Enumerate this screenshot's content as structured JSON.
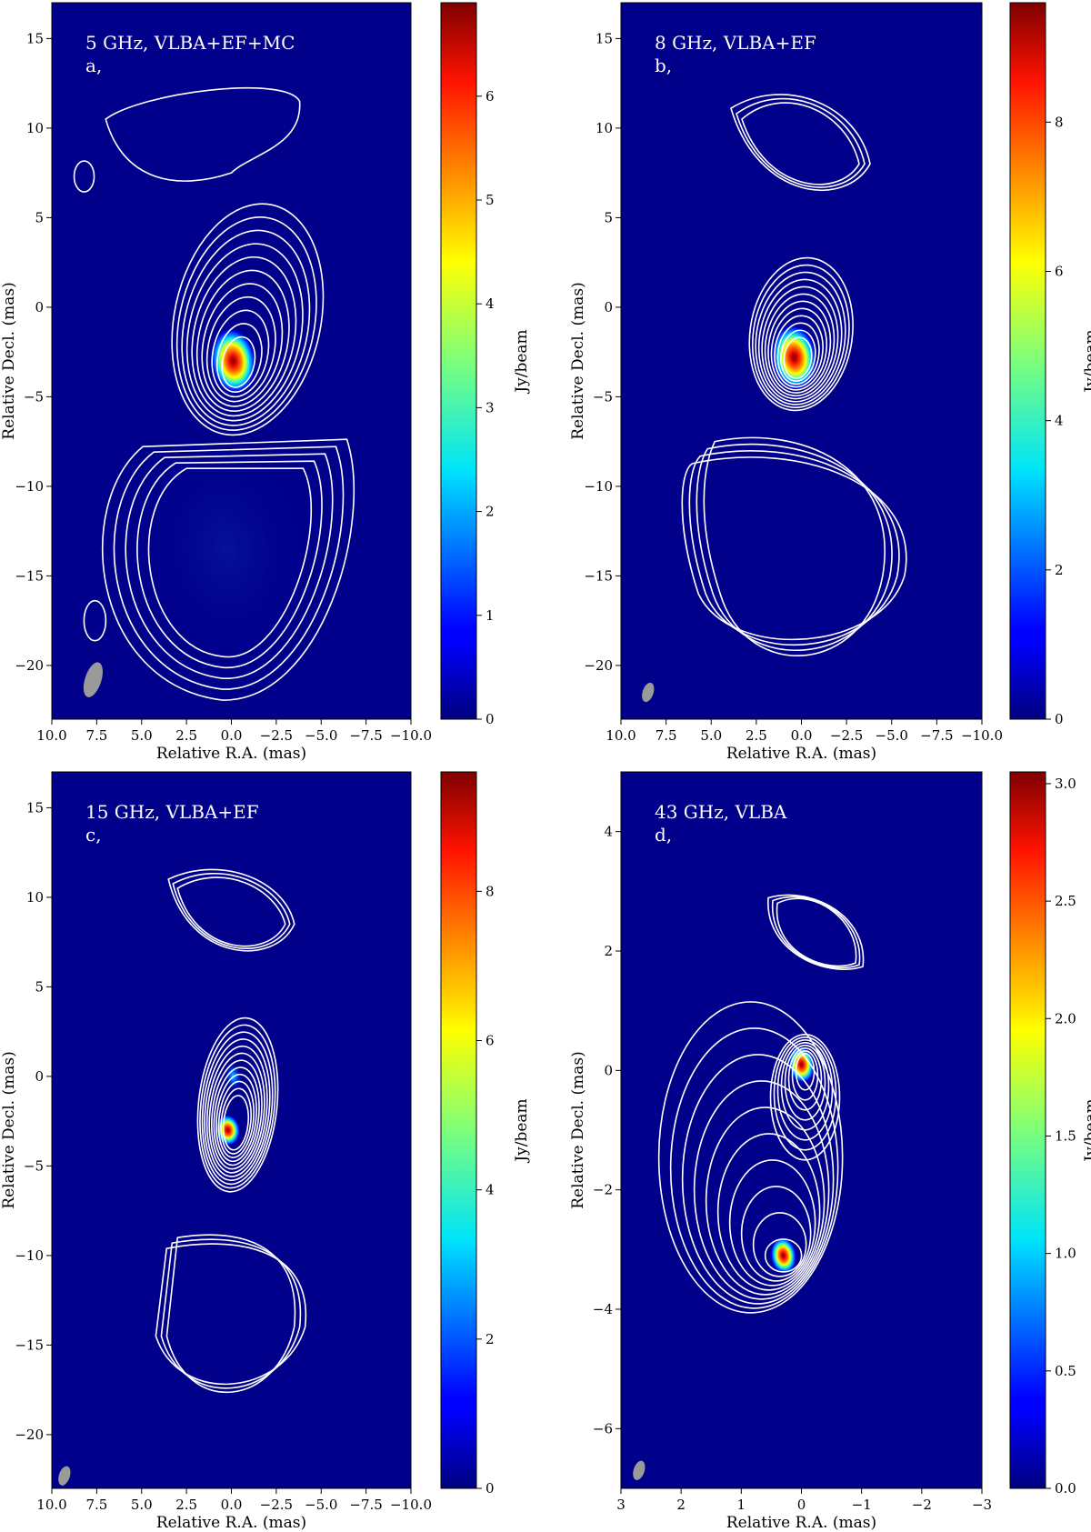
{
  "chart_data": [
    {
      "type": "heatmap",
      "panel_label": "a,",
      "title": "5 GHz, VLBA+EF+MC",
      "xlabel": "Relative R.A. (mas)",
      "ylabel": "Relative Decl. (mas)",
      "xlim": [
        10.0,
        -10.0
      ],
      "ylim": [
        -23.0,
        17.0
      ],
      "xticks": [
        10.0,
        7.5,
        5.0,
        2.5,
        0.0,
        -2.5,
        -5.0,
        -7.5,
        -10.0
      ],
      "xtick_labels": [
        "10.0",
        "7.5",
        "5.0",
        "2.5",
        "0.0",
        "−2.5",
        "−5.0",
        "−7.5",
        "−10.0"
      ],
      "yticks": [
        15,
        10,
        5,
        0,
        -5,
        -10,
        -15,
        -20
      ],
      "ytick_labels": [
        "15",
        "10",
        "5",
        "0",
        "−5",
        "−10",
        "−15",
        "−20"
      ],
      "colorbar": {
        "label": "Jy/beam",
        "range": [
          0,
          6.9
        ],
        "ticks": [
          0,
          1,
          2,
          3,
          4,
          5,
          6
        ],
        "tick_labels": [
          "0",
          "1",
          "2",
          "3",
          "4",
          "5",
          "6"
        ]
      },
      "components": [
        {
          "x": -0.1,
          "y": -3.0,
          "peak": 6.9
        },
        {
          "x": 0.3,
          "y": -13.5,
          "peak": 0.1
        }
      ],
      "beam": {
        "x": 7.7,
        "y": -20.8
      }
    },
    {
      "type": "heatmap",
      "panel_label": "b,",
      "title": "8 GHz, VLBA+EF",
      "xlabel": "Relative R.A. (mas)",
      "ylabel": "Relative Decl. (mas)",
      "xlim": [
        10.0,
        -10.0
      ],
      "ylim": [
        -23.0,
        17.0
      ],
      "xticks": [
        10.0,
        7.5,
        5.0,
        2.5,
        0.0,
        -2.5,
        -5.0,
        -7.5,
        -10.0
      ],
      "xtick_labels": [
        "10.0",
        "7.5",
        "5.0",
        "2.5",
        "0.0",
        "−2.5",
        "−5.0",
        "−7.5",
        "−10.0"
      ],
      "yticks": [
        15,
        10,
        5,
        0,
        -5,
        -10,
        -15,
        -20
      ],
      "ytick_labels": [
        "15",
        "10",
        "5",
        "0",
        "−5",
        "−10",
        "−15",
        "−20"
      ],
      "colorbar": {
        "label": "Jy/beam",
        "range": [
          0,
          9.6
        ],
        "ticks": [
          0,
          2,
          4,
          6,
          8
        ],
        "tick_labels": [
          "0",
          "2",
          "4",
          "6",
          "8"
        ]
      },
      "components": [
        {
          "x": 0.4,
          "y": -2.8,
          "peak": 9.6
        }
      ],
      "beam": {
        "x": 8.5,
        "y": -21.5
      }
    },
    {
      "type": "heatmap",
      "panel_label": "c,",
      "title": "15 GHz, VLBA+EF",
      "xlabel": "Relative R.A. (mas)",
      "ylabel": "Relative Decl. (mas)",
      "xlim": [
        10.0,
        -10.0
      ],
      "ylim": [
        -23.0,
        17.0
      ],
      "xticks": [
        10.0,
        7.5,
        5.0,
        2.5,
        0.0,
        -2.5,
        -5.0,
        -7.5,
        -10.0
      ],
      "xtick_labels": [
        "10.0",
        "7.5",
        "5.0",
        "2.5",
        "0.0",
        "−2.5",
        "−5.0",
        "−7.5",
        "−10.0"
      ],
      "yticks": [
        15,
        10,
        5,
        0,
        -5,
        -10,
        -15,
        -20
      ],
      "ytick_labels": [
        "15",
        "10",
        "5",
        "0",
        "−5",
        "−10",
        "−15",
        "−20"
      ],
      "colorbar": {
        "label": "Jy/beam",
        "range": [
          0,
          9.6
        ],
        "ticks": [
          0,
          2,
          4,
          6,
          8
        ],
        "tick_labels": [
          "0",
          "2",
          "4",
          "6",
          "8"
        ]
      },
      "components": [
        {
          "x": 0.2,
          "y": -3.0,
          "peak": 9.6
        },
        {
          "x": -0.1,
          "y": 0.0,
          "peak": 2.0
        }
      ],
      "beam": {
        "x": 9.3,
        "y": -22.3
      }
    },
    {
      "type": "heatmap",
      "panel_label": "d,",
      "title": "43 GHz, VLBA",
      "xlabel": "Relative R.A. (mas)",
      "ylabel": "Relative Decl. (mas)",
      "xlim": [
        3.0,
        -3.0
      ],
      "ylim": [
        -7.0,
        5.0
      ],
      "xticks": [
        3,
        2,
        1,
        0,
        -1,
        -2,
        -3
      ],
      "xtick_labels": [
        "3",
        "2",
        "1",
        "0",
        "−1",
        "−2",
        "−3"
      ],
      "yticks": [
        4,
        2,
        0,
        -2,
        -4,
        -6
      ],
      "ytick_labels": [
        "4",
        "2",
        "0",
        "−2",
        "−4",
        "−6"
      ],
      "colorbar": {
        "label": "Jy/beam",
        "range": [
          0.0,
          3.05
        ],
        "ticks": [
          0.0,
          0.5,
          1.0,
          1.5,
          2.0,
          2.5,
          3.0
        ],
        "tick_labels": [
          "0.0",
          "0.5",
          "1.0",
          "1.5",
          "2.0",
          "2.5",
          "3.0"
        ]
      },
      "components": [
        {
          "x": 0.0,
          "y": 0.1,
          "peak": 3.0
        },
        {
          "x": 0.3,
          "y": -3.1,
          "peak": 3.05
        },
        {
          "x": -0.3,
          "y": -2.6,
          "peak": 0.35
        }
      ],
      "beam": {
        "x": 2.7,
        "y": -6.7
      }
    }
  ]
}
